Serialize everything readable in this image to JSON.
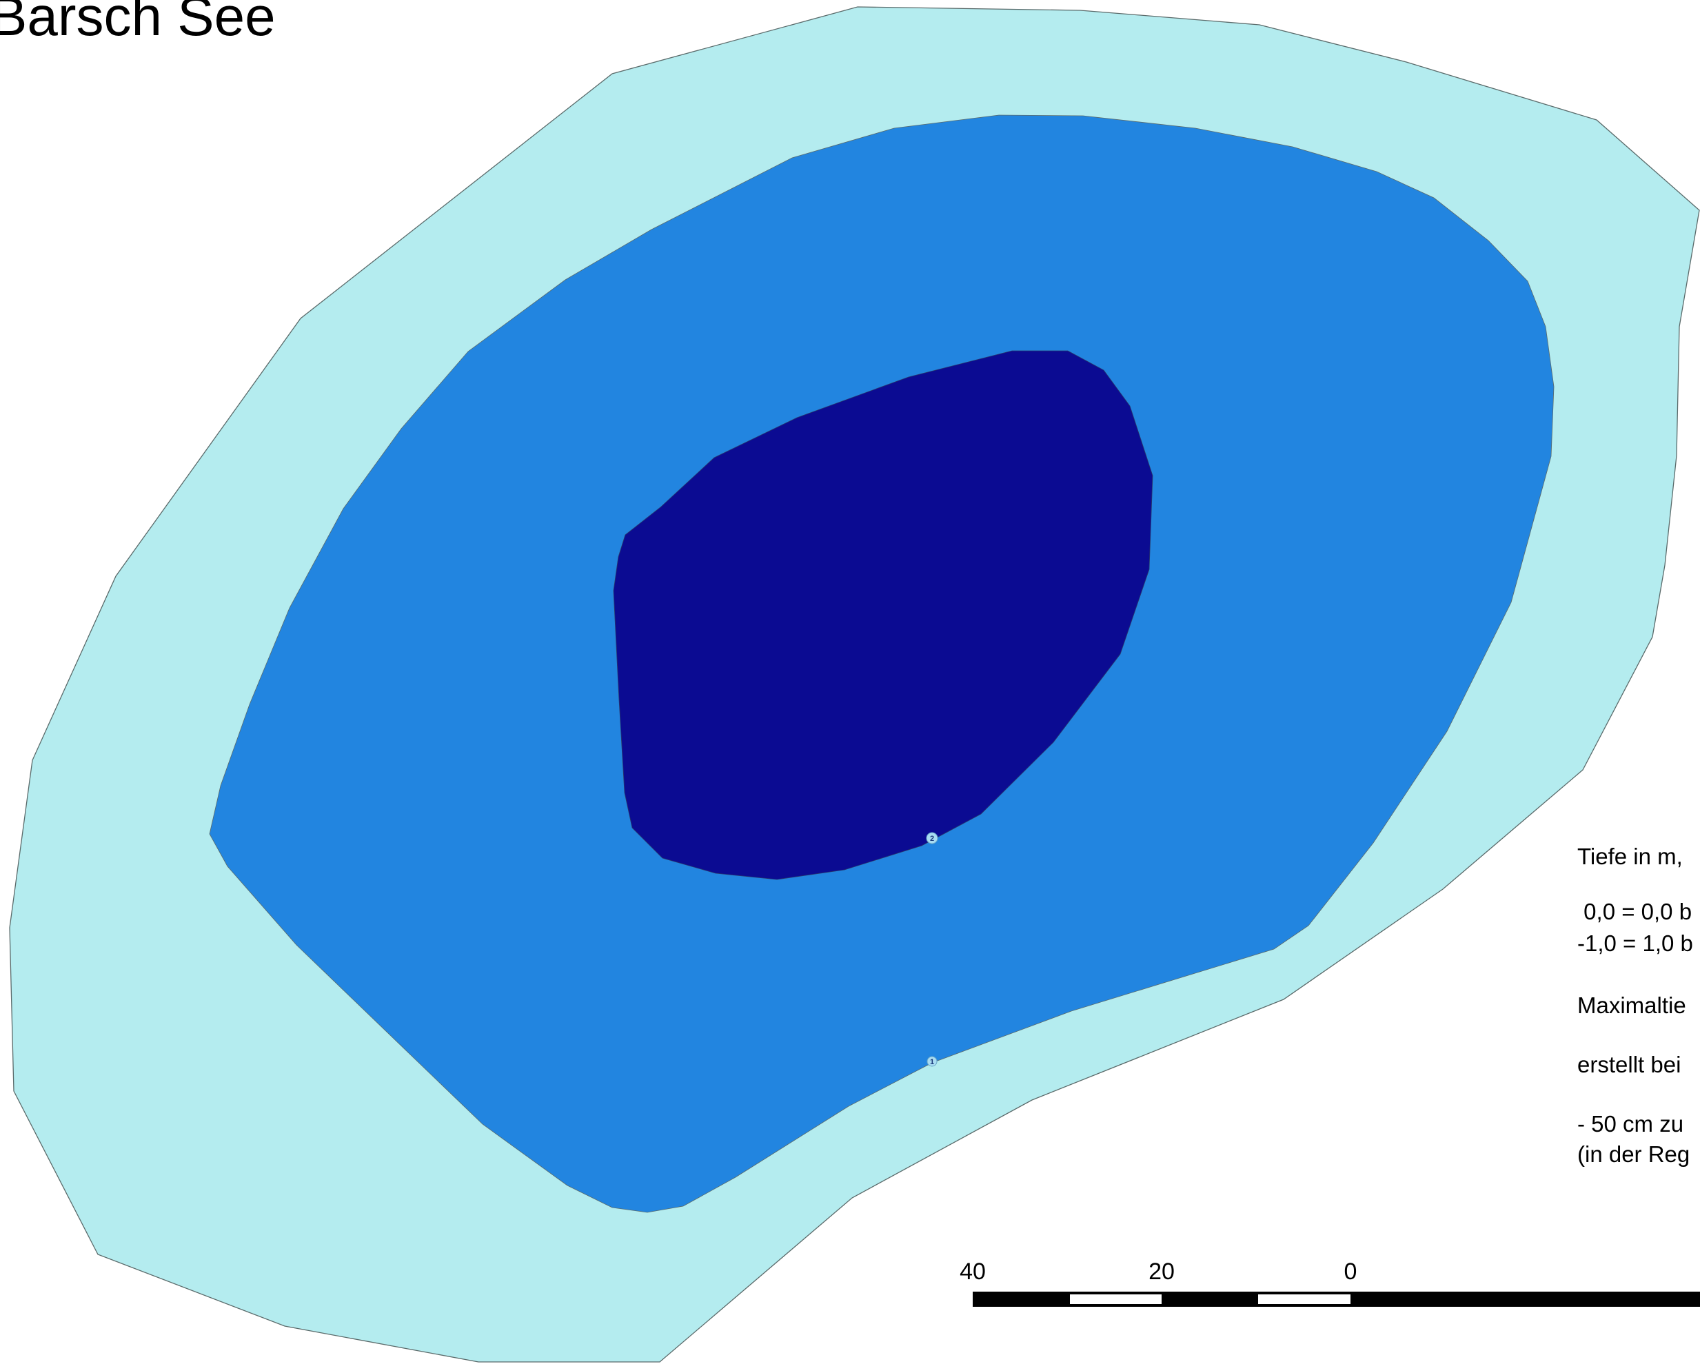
{
  "map": {
    "title": "Barsch See",
    "colors": {
      "depth_0_to_1": "#b4ecef",
      "depth_1_to_2": "#2285e0",
      "depth_over_2": "#0b0b92",
      "outline": "#5a6a6a",
      "contour_label_fill": "#a9dcf2"
    },
    "contour_labels": [
      "1",
      "2"
    ],
    "legend": {
      "line1": "Tiefe in m,",
      "line2": " 0,0 = 0,0 b",
      "line3": "-1,0 = 1,0 b",
      "line4": "Maximaltie",
      "line5": "erstellt bei",
      "line6": "- 50 cm zu",
      "line7": "(in der Reg"
    },
    "scale_bar": {
      "labels": [
        "40",
        "20",
        "0"
      ]
    }
  }
}
